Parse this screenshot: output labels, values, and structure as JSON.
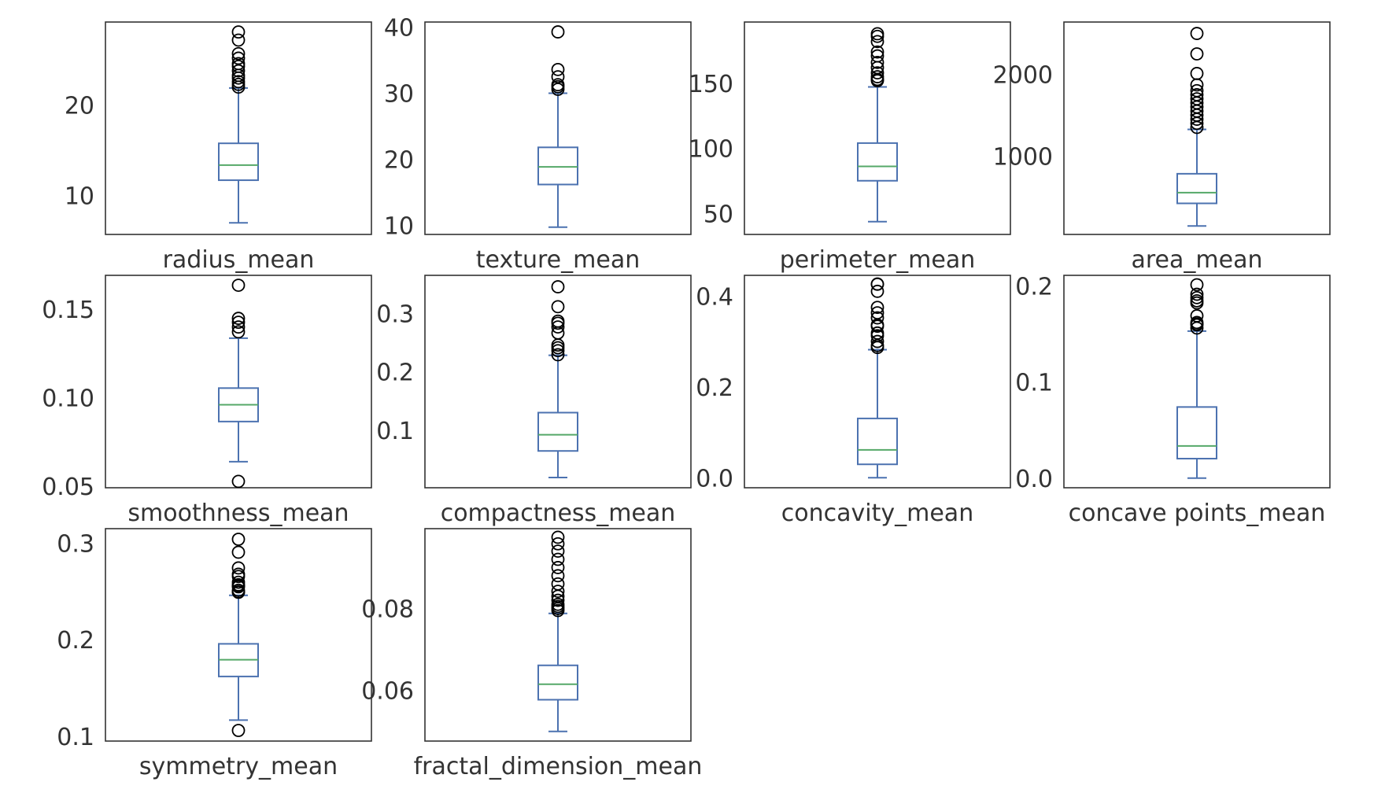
{
  "chart_data": [
    {
      "type": "box",
      "category": "radius_mean",
      "ylim": [
        5.7,
        29.2
      ],
      "yticks": [
        10,
        20
      ],
      "ytick_labels": [
        "10",
        "20"
      ],
      "stats": {
        "whisker_low": 6.98,
        "q1": 11.7,
        "median": 13.37,
        "q3": 15.78,
        "whisker_high": 21.9
      },
      "outliers": [
        22.0,
        22.3,
        22.6,
        23.0,
        23.3,
        23.8,
        24.3,
        24.6,
        25.2,
        25.7,
        27.2,
        28.1
      ]
    },
    {
      "type": "box",
      "category": "texture_mean",
      "ylim": [
        8.6,
        40.8
      ],
      "yticks": [
        10,
        20,
        30,
        40
      ],
      "ytick_labels": [
        "10",
        "20",
        "30",
        "40"
      ],
      "stats": {
        "whisker_low": 9.71,
        "q1": 16.17,
        "median": 18.84,
        "q3": 21.8,
        "whisker_high": 30.0
      },
      "outliers": [
        30.6,
        31.0,
        31.3,
        32.5,
        33.6,
        39.3
      ]
    },
    {
      "type": "box",
      "category": "perimeter_mean",
      "ylim": [
        34.0,
        197.0
      ],
      "yticks": [
        50,
        100,
        150
      ],
      "ytick_labels": [
        "50",
        "100",
        "150"
      ],
      "stats": {
        "whisker_low": 43.8,
        "q1": 75.2,
        "median": 86.2,
        "q3": 104.1,
        "whisker_high": 147.2
      },
      "outliers": [
        152,
        153,
        155,
        158,
        162,
        166,
        171,
        174,
        182,
        186,
        188
      ]
    },
    {
      "type": "box",
      "category": "area_mean",
      "ylim": [
        40,
        2640
      ],
      "yticks": [
        1000,
        2000
      ],
      "ytick_labels": [
        "1000",
        "2000"
      ],
      "stats": {
        "whisker_low": 143.5,
        "q1": 420.3,
        "median": 551.1,
        "q3": 782.7,
        "whisker_high": 1326
      },
      "outliers": [
        1350,
        1400,
        1450,
        1500,
        1550,
        1600,
        1650,
        1700,
        1750,
        1800,
        1870,
        2010,
        2250,
        2500
      ]
    },
    {
      "type": "box",
      "category": "smoothness_mean",
      "ylim": [
        0.049,
        0.169
      ],
      "yticks": [
        0.05,
        0.1,
        0.15
      ],
      "ytick_labels": [
        "0.05",
        "0.10",
        "0.15"
      ],
      "stats": {
        "whisker_low": 0.0637,
        "q1": 0.0864,
        "median": 0.0959,
        "q3": 0.1053,
        "whisker_high": 0.1335
      },
      "outliers": [
        0.0526,
        0.1371,
        0.1398,
        0.1425,
        0.1447,
        0.1634
      ]
    },
    {
      "type": "box",
      "category": "compactness_mean",
      "ylim": [
        0.002,
        0.365
      ],
      "yticks": [
        0.1,
        0.2,
        0.3
      ],
      "ytick_labels": [
        "0.1",
        "0.2",
        "0.3"
      ],
      "stats": {
        "whisker_low": 0.0194,
        "q1": 0.0649,
        "median": 0.0926,
        "q3": 0.1304,
        "whisker_high": 0.2284
      },
      "outliers": [
        0.2293,
        0.2363,
        0.2413,
        0.2458,
        0.2665,
        0.2768,
        0.2832,
        0.2867,
        0.3114,
        0.3454
      ]
    },
    {
      "type": "box",
      "category": "concavity_mean",
      "ylim": [
        -0.022,
        0.446
      ],
      "yticks": [
        0.0,
        0.2,
        0.4
      ],
      "ytick_labels": [
        "0.0",
        "0.2",
        "0.4"
      ],
      "stats": {
        "whisker_low": 0.0,
        "q1": 0.0296,
        "median": 0.0615,
        "q3": 0.1307,
        "whisker_high": 0.2821
      },
      "outliers": [
        0.2871,
        0.2914,
        0.3003,
        0.313,
        0.3189,
        0.3339,
        0.3368,
        0.3523,
        0.3635,
        0.3754,
        0.4108,
        0.4264,
        0.4268
      ]
    },
    {
      "type": "box",
      "category": "concave points_mean",
      "ylim": [
        -0.01,
        0.211
      ],
      "yticks": [
        0.0,
        0.1,
        0.2
      ],
      "ytick_labels": [
        "0.0",
        "0.1",
        "0.2"
      ],
      "stats": {
        "whisker_low": 0.0,
        "q1": 0.0203,
        "median": 0.0335,
        "q3": 0.074,
        "whisker_high": 0.153
      },
      "outliers": [
        0.1562,
        0.1595,
        0.1604,
        0.162,
        0.1689,
        0.1823,
        0.1845,
        0.1878,
        0.1913,
        0.2012
      ]
    },
    {
      "type": "box",
      "category": "symmetry_mean",
      "ylim": [
        0.095,
        0.315
      ],
      "yticks": [
        0.1,
        0.2,
        0.3
      ],
      "ytick_labels": [
        "0.1",
        "0.2",
        "0.3"
      ],
      "stats": {
        "whisker_low": 0.1167,
        "q1": 0.1619,
        "median": 0.1792,
        "q3": 0.1957,
        "whisker_high": 0.2459
      },
      "outliers": [
        0.106,
        0.2491,
        0.2495,
        0.2512,
        0.2548,
        0.2556,
        0.2569,
        0.2595,
        0.2655,
        0.2678,
        0.2743,
        0.2906,
        0.304
      ]
    },
    {
      "type": "box",
      "category": "fractal_dimension_mean",
      "ylim": [
        0.0476,
        0.0995
      ],
      "yticks": [
        0.06,
        0.08
      ],
      "ytick_labels": [
        "0.06",
        "0.08"
      ],
      "stats": {
        "whisker_low": 0.04996,
        "q1": 0.0577,
        "median": 0.0615,
        "q3": 0.0661,
        "whisker_high": 0.0788
      },
      "outliers": [
        0.0795,
        0.08,
        0.0805,
        0.081,
        0.082,
        0.083,
        0.0842,
        0.086,
        0.088,
        0.09,
        0.092,
        0.094,
        0.0958,
        0.0974
      ]
    }
  ],
  "colors": {
    "box": "#4c72b0",
    "median": "#55a868",
    "frame": "#333333",
    "outlier": "#000000",
    "text": "#333333"
  }
}
